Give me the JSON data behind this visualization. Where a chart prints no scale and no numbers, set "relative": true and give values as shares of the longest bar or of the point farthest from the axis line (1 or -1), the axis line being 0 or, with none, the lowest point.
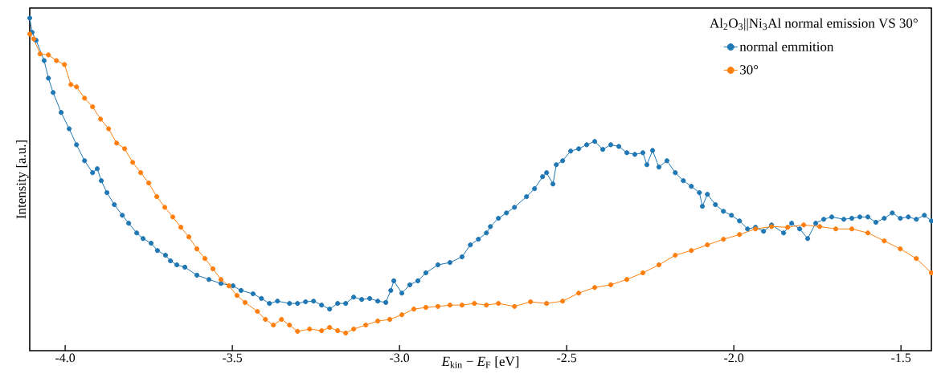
{
  "chart_data": {
    "type": "line",
    "relative": true,
    "legend_title": "Al$_{2}$O$_{3}$||Ni$_{3}$Al normal emission VS 30°",
    "xlabel": "*E*$_{kin}$ − *E*$_{F}$ [eV]",
    "ylabel": "Intensity [a.u.]",
    "legend": "top right",
    "marker": "circle",
    "line_style": "solid",
    "grid": false,
    "xlim": [
      -4.106,
      -1.409
    ],
    "xticks": [
      {
        "value": -4.0,
        "label": "-4.0"
      },
      -3.5,
      {
        "value": -3.0,
        "label": "-3.0"
      },
      -2.5,
      {
        "value": -2.0,
        "label": "-2.0"
      },
      -1.5
    ],
    "series": [
      {
        "name": "normal emmition",
        "color": "#1f77b4",
        "x": [
          -4.106,
          -4.099,
          -4.087,
          -4.063,
          -4.05,
          -4.036,
          -4.012,
          -3.988,
          -3.966,
          -3.942,
          -3.918,
          -3.904,
          -3.892,
          -3.875,
          -3.853,
          -3.829,
          -3.81,
          -3.786,
          -3.767,
          -3.743,
          -3.724,
          -3.7,
          -3.685,
          -3.666,
          -3.642,
          -3.606,
          -3.57,
          -3.534,
          -3.498,
          -3.474,
          -3.438,
          -3.413,
          -3.389,
          -3.365,
          -3.329,
          -3.305,
          -3.281,
          -3.257,
          -3.233,
          -3.209,
          -3.185,
          -3.161,
          -3.137,
          -3.113,
          -3.089,
          -3.065,
          -3.041,
          -3.026,
          -3.017,
          -2.993,
          -2.969,
          -2.945,
          -2.921,
          -2.885,
          -2.849,
          -2.813,
          -2.788,
          -2.764,
          -2.74,
          -2.728,
          -2.704,
          -2.68,
          -2.656,
          -2.62,
          -2.596,
          -2.572,
          -2.56,
          -2.541,
          -2.531,
          -2.512,
          -2.488,
          -2.464,
          -2.44,
          -2.416,
          -2.392,
          -2.368,
          -2.344,
          -2.32,
          -2.296,
          -2.272,
          -2.26,
          -2.243,
          -2.224,
          -2.2,
          -2.175,
          -2.151,
          -2.127,
          -2.103,
          -2.094,
          -2.079,
          -2.055,
          -2.031,
          -2.007,
          -1.983,
          -1.959,
          -1.935,
          -1.911,
          -1.887,
          -1.851,
          -1.827,
          -1.803,
          -1.779,
          -1.755,
          -1.731,
          -1.707,
          -1.671,
          -1.647,
          -1.623,
          -1.599,
          -1.575,
          -1.55,
          -1.526,
          -1.502,
          -1.478,
          -1.454,
          -1.43,
          -1.409
        ],
        "values": [
          1.0,
          0.957,
          0.933,
          0.872,
          0.819,
          0.776,
          0.716,
          0.667,
          0.619,
          0.571,
          0.535,
          0.547,
          0.511,
          0.475,
          0.439,
          0.407,
          0.383,
          0.354,
          0.337,
          0.323,
          0.301,
          0.287,
          0.27,
          0.258,
          0.251,
          0.227,
          0.214,
          0.202,
          0.195,
          0.181,
          0.171,
          0.157,
          0.142,
          0.149,
          0.142,
          0.142,
          0.147,
          0.149,
          0.137,
          0.125,
          0.142,
          0.142,
          0.161,
          0.154,
          0.157,
          0.149,
          0.145,
          0.181,
          0.21,
          0.173,
          0.198,
          0.21,
          0.234,
          0.258,
          0.265,
          0.282,
          0.318,
          0.335,
          0.354,
          0.373,
          0.398,
          0.414,
          0.431,
          0.463,
          0.487,
          0.523,
          0.535,
          0.501,
          0.559,
          0.571,
          0.6,
          0.607,
          0.619,
          0.629,
          0.605,
          0.619,
          0.614,
          0.595,
          0.59,
          0.595,
          0.559,
          0.602,
          0.552,
          0.571,
          0.535,
          0.511,
          0.494,
          0.475,
          0.434,
          0.47,
          0.439,
          0.419,
          0.407,
          0.39,
          0.366,
          0.371,
          0.359,
          0.378,
          0.354,
          0.383,
          0.366,
          0.337,
          0.383,
          0.395,
          0.402,
          0.395,
          0.398,
          0.402,
          0.402,
          0.386,
          0.398,
          0.414,
          0.398,
          0.402,
          0.395,
          0.407,
          0.39
        ]
      },
      {
        "name": "30°",
        "color": "#ff7f0e",
        "x": [
          -4.106,
          -4.094,
          -4.075,
          -4.05,
          -4.026,
          -4.002,
          -3.983,
          -3.966,
          -3.942,
          -3.918,
          -3.894,
          -3.87,
          -3.846,
          -3.822,
          -3.798,
          -3.774,
          -3.75,
          -3.726,
          -3.702,
          -3.678,
          -3.654,
          -3.63,
          -3.606,
          -3.582,
          -3.558,
          -3.534,
          -3.51,
          -3.486,
          -3.462,
          -3.425,
          -3.401,
          -3.377,
          -3.353,
          -3.329,
          -3.305,
          -3.269,
          -3.233,
          -3.209,
          -3.185,
          -3.161,
          -3.137,
          -3.101,
          -3.065,
          -3.029,
          -2.993,
          -2.957,
          -2.921,
          -2.885,
          -2.849,
          -2.813,
          -2.776,
          -2.74,
          -2.704,
          -2.656,
          -2.608,
          -2.56,
          -2.512,
          -2.464,
          -2.416,
          -2.368,
          -2.32,
          -2.272,
          -2.224,
          -2.175,
          -2.127,
          -2.079,
          -2.031,
          -1.983,
          -1.935,
          -1.887,
          -1.839,
          -1.791,
          -1.743,
          -1.695,
          -1.647,
          -1.599,
          -1.55,
          -1.502,
          -1.454,
          -1.409
        ],
        "values": [
          0.952,
          0.937,
          0.892,
          0.889,
          0.872,
          0.86,
          0.8,
          0.793,
          0.759,
          0.733,
          0.696,
          0.667,
          0.624,
          0.607,
          0.566,
          0.535,
          0.504,
          0.463,
          0.431,
          0.402,
          0.371,
          0.342,
          0.306,
          0.277,
          0.246,
          0.214,
          0.195,
          0.166,
          0.145,
          0.118,
          0.094,
          0.077,
          0.094,
          0.077,
          0.058,
          0.065,
          0.06,
          0.07,
          0.06,
          0.053,
          0.065,
          0.077,
          0.089,
          0.094,
          0.108,
          0.125,
          0.13,
          0.133,
          0.137,
          0.137,
          0.142,
          0.137,
          0.142,
          0.133,
          0.147,
          0.142,
          0.149,
          0.173,
          0.19,
          0.198,
          0.214,
          0.234,
          0.258,
          0.287,
          0.301,
          0.318,
          0.335,
          0.349,
          0.366,
          0.373,
          0.371,
          0.378,
          0.373,
          0.366,
          0.366,
          0.354,
          0.33,
          0.306,
          0.277,
          0.234
        ]
      }
    ]
  }
}
